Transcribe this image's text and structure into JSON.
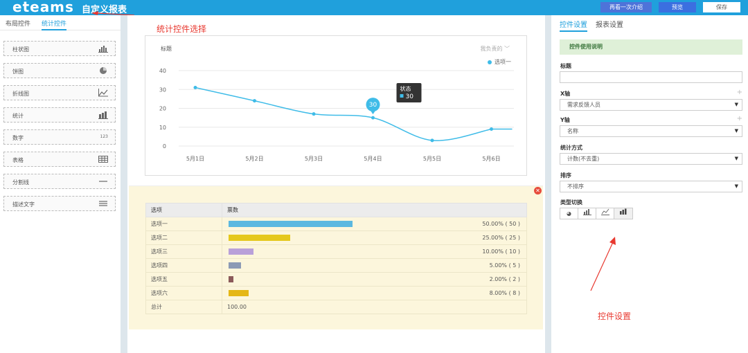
{
  "header": {
    "logo": "eteams",
    "title": "自定义报表",
    "buttons": {
      "intro": "再看一次介绍",
      "preview": "预览",
      "save": "保存"
    }
  },
  "left_panel": {
    "tabs": [
      "布局控件",
      "统计控件"
    ],
    "active_tab": "统计控件",
    "components": [
      {
        "label": "柱状图",
        "icon": "bar-chart-icon",
        "glyph": "📊"
      },
      {
        "label": "饼图",
        "icon": "pie-chart-icon",
        "glyph": "◕"
      },
      {
        "label": "折线图",
        "icon": "line-chart-icon",
        "glyph": "⟋"
      },
      {
        "label": "统计",
        "icon": "stat-icon",
        "glyph": "▦"
      },
      {
        "label": "数字",
        "icon": "number-icon",
        "glyph": "123"
      },
      {
        "label": "表格",
        "icon": "table-icon",
        "glyph": "▦"
      },
      {
        "label": "分割线",
        "icon": "divider-icon",
        "glyph": "—"
      },
      {
        "label": "描述文字",
        "icon": "text-icon",
        "glyph": "≡"
      }
    ]
  },
  "annotations": {
    "left": "统计控件选择",
    "right": "控件设置"
  },
  "chart_data": {
    "type": "line",
    "title": "标题",
    "filter": "我负责的",
    "series": [
      {
        "name": "选项一",
        "values": [
          31,
          24,
          17,
          15,
          3,
          9
        ]
      }
    ],
    "categories": [
      "5月1日",
      "5月2日",
      "5月3日",
      "5月4日",
      "5月5日",
      "5月6日"
    ],
    "ylim": [
      0,
      40
    ],
    "yticks": [
      0,
      10,
      20,
      30,
      40
    ],
    "tooltip": {
      "title": "状态",
      "value": "30",
      "bubble": "30"
    },
    "color": "#3fbce8",
    "legend_position": "top-right"
  },
  "table": {
    "headers": [
      "选项",
      "票数"
    ],
    "rows": [
      {
        "label": "选项一",
        "ratio": 0.5,
        "pct": "50.00%",
        "count": "( 50 )",
        "color": "#5bb8e0"
      },
      {
        "label": "选项二",
        "ratio": 0.25,
        "pct": "25.00%",
        "count": "( 25 )",
        "color": "#e5c81c"
      },
      {
        "label": "选项三",
        "ratio": 0.1,
        "pct": "10.00%",
        "count": "( 10 )",
        "color": "#b9a0d9"
      },
      {
        "label": "选项四",
        "ratio": 0.05,
        "pct": "5.00%",
        "count": "( 5 )",
        "color": "#8c9ab5"
      },
      {
        "label": "选项五",
        "ratio": 0.02,
        "pct": "2.00%",
        "count": "( 2 )",
        "color": "#8b5a5a"
      },
      {
        "label": "选项六",
        "ratio": 0.08,
        "pct": "8.00%",
        "count": "( 8 )",
        "color": "#e5b716"
      }
    ],
    "total_label": "总计",
    "total_value": "100.00"
  },
  "right_panel": {
    "tabs": [
      "控件设置",
      "报表设置"
    ],
    "notice": "控件使用说明",
    "fields": {
      "title_label": "标题",
      "title_value": "",
      "x_label": "X轴",
      "x_value": "需求反馈人员",
      "y_label": "Y轴",
      "y_value": "名称",
      "method_label": "统计方式",
      "method_value": "计数(不去重)",
      "sort_label": "排序",
      "sort_value": "不排序",
      "type_label": "类型切换"
    }
  }
}
